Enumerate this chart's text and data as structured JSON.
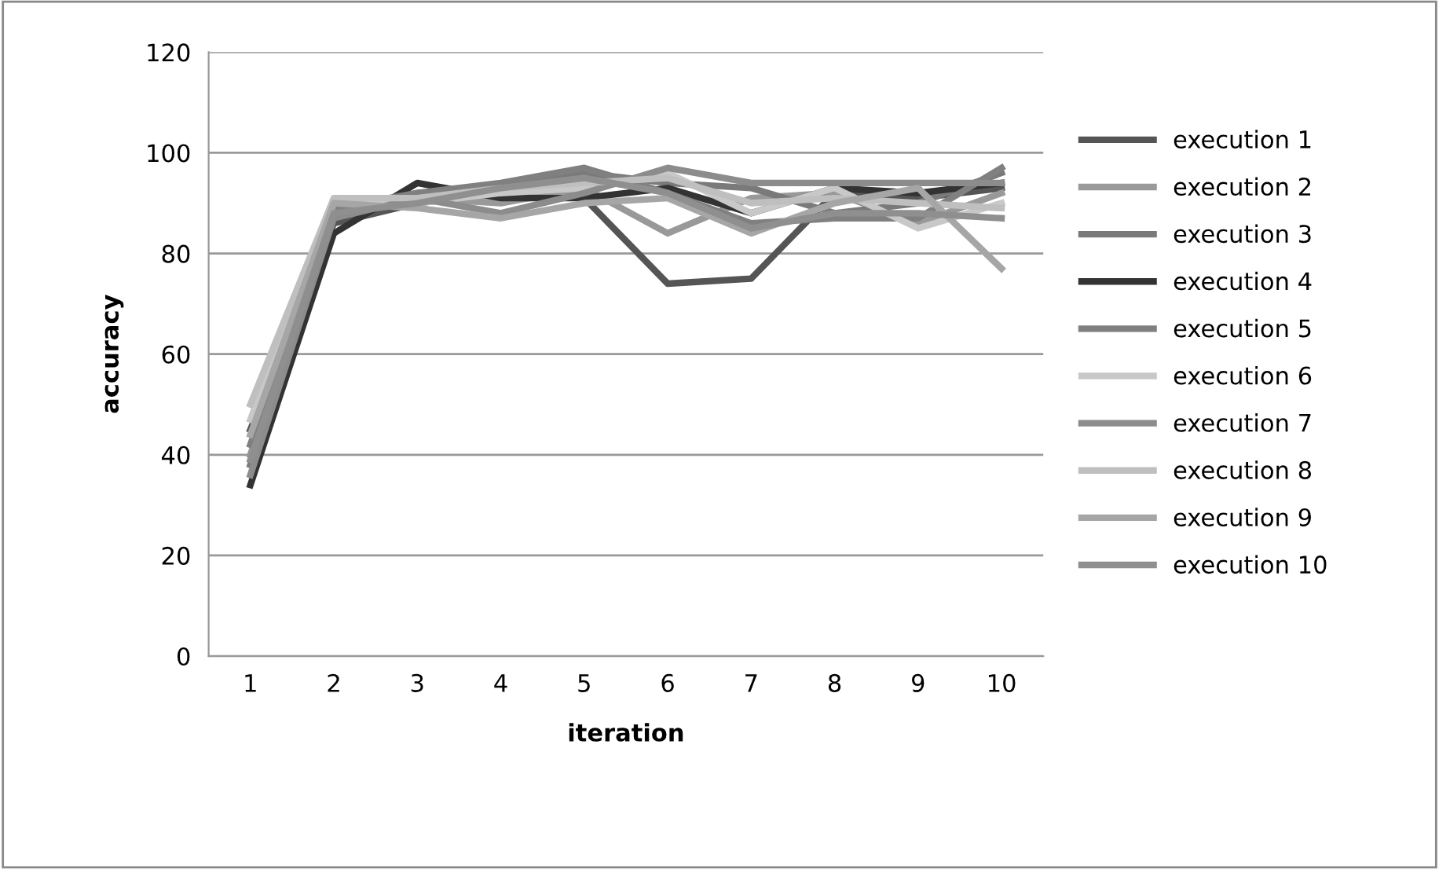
{
  "chart_data": {
    "type": "line",
    "xlabel": "iteration",
    "ylabel": "accuracy",
    "categories": [
      "1",
      "2",
      "3",
      "4",
      "5",
      "6",
      "7",
      "8",
      "9",
      "10"
    ],
    "series": [
      {
        "name": "execution 1",
        "color": "#555555",
        "values": [
          45,
          86,
          90,
          92,
          91,
          74,
          75,
          92,
          91,
          93
        ]
      },
      {
        "name": "execution 2",
        "color": "#999999",
        "values": [
          40,
          90,
          91,
          90,
          93,
          84,
          91,
          92,
          86,
          92
        ]
      },
      {
        "name": "execution 3",
        "color": "#7a7a7a",
        "values": [
          38,
          88,
          92,
          93,
          96,
          94,
          93,
          88,
          90,
          96
        ]
      },
      {
        "name": "execution 4",
        "color": "#333333",
        "values": [
          34,
          84,
          94,
          91,
          91,
          93,
          88,
          93,
          92,
          94
        ]
      },
      {
        "name": "execution 5",
        "color": "#808080",
        "values": [
          42,
          89,
          92,
          94,
          97,
          92,
          86,
          87,
          87,
          97
        ]
      },
      {
        "name": "execution 6",
        "color": "#c8c8c8",
        "values": [
          47,
          91,
          90,
          92,
          93,
          96,
          88,
          93,
          85,
          90
        ]
      },
      {
        "name": "execution 7",
        "color": "#8c8c8c",
        "values": [
          36,
          87,
          91,
          88,
          92,
          97,
          94,
          94,
          94,
          94
        ]
      },
      {
        "name": "execution 8",
        "color": "#bfbfbf",
        "values": [
          50,
          91,
          91,
          93,
          94,
          95,
          90,
          91,
          90,
          89
        ]
      },
      {
        "name": "execution 9",
        "color": "#a6a6a6",
        "values": [
          44,
          90,
          89,
          87,
          90,
          91,
          84,
          90,
          93,
          77
        ]
      },
      {
        "name": "execution 10",
        "color": "#8f8f8f",
        "values": [
          39,
          88,
          90,
          93,
          95,
          92,
          85,
          88,
          88,
          87
        ]
      }
    ],
    "ylim": [
      0,
      120
    ],
    "yticks": [
      0,
      20,
      40,
      60,
      80,
      100,
      120
    ],
    "grid": "y",
    "legend": "right",
    "marker": "none",
    "line_style": "solid"
  }
}
